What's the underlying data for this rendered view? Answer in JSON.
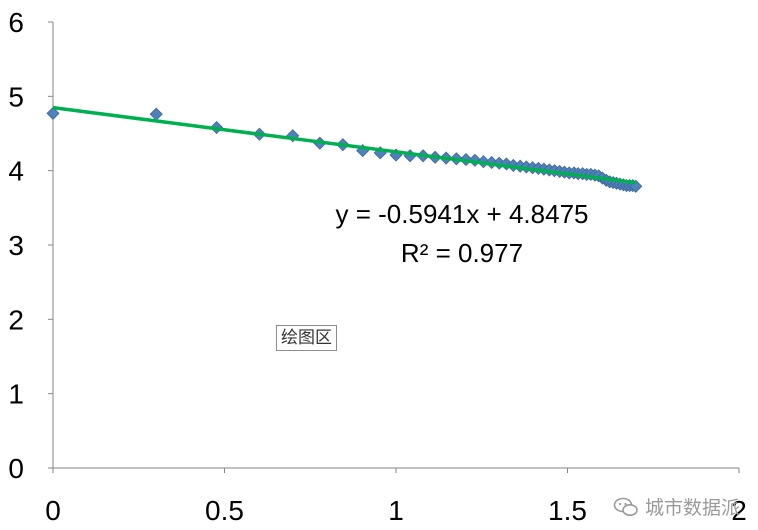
{
  "chart_data": {
    "type": "scatter",
    "xlim": [
      0,
      2
    ],
    "ylim": [
      0,
      6
    ],
    "x_ticks": [
      "0",
      "0.5",
      "1",
      "1.5",
      "2"
    ],
    "y_ticks": [
      "0",
      "1",
      "2",
      "3",
      "4",
      "5",
      "6"
    ],
    "grid": false,
    "marker_color": "#4f81bd",
    "trendline_color": "#00b050",
    "points": [
      [
        0.0,
        4.77
      ],
      [
        0.301,
        4.76
      ],
      [
        0.477,
        4.58
      ],
      [
        0.602,
        4.49
      ],
      [
        0.699,
        4.47
      ],
      [
        0.778,
        4.37
      ],
      [
        0.845,
        4.35
      ],
      [
        0.903,
        4.27
      ],
      [
        0.954,
        4.24
      ],
      [
        1.0,
        4.21
      ],
      [
        1.041,
        4.2
      ],
      [
        1.079,
        4.2
      ],
      [
        1.114,
        4.18
      ],
      [
        1.146,
        4.17
      ],
      [
        1.176,
        4.16
      ],
      [
        1.204,
        4.15
      ],
      [
        1.23,
        4.14
      ],
      [
        1.255,
        4.12
      ],
      [
        1.279,
        4.11
      ],
      [
        1.301,
        4.1
      ],
      [
        1.322,
        4.09
      ],
      [
        1.342,
        4.07
      ],
      [
        1.362,
        4.06
      ],
      [
        1.38,
        4.05
      ],
      [
        1.398,
        4.04
      ],
      [
        1.415,
        4.03
      ],
      [
        1.431,
        4.02
      ],
      [
        1.447,
        4.01
      ],
      [
        1.462,
        4.0
      ],
      [
        1.477,
        3.99
      ],
      [
        1.491,
        3.98
      ],
      [
        1.505,
        3.97
      ],
      [
        1.519,
        3.97
      ],
      [
        1.531,
        3.96
      ],
      [
        1.544,
        3.96
      ],
      [
        1.556,
        3.95
      ],
      [
        1.568,
        3.95
      ],
      [
        1.58,
        3.94
      ],
      [
        1.591,
        3.93
      ],
      [
        1.602,
        3.9
      ],
      [
        1.613,
        3.87
      ],
      [
        1.623,
        3.85
      ],
      [
        1.633,
        3.84
      ],
      [
        1.643,
        3.83
      ],
      [
        1.653,
        3.82
      ],
      [
        1.663,
        3.81
      ],
      [
        1.672,
        3.8
      ],
      [
        1.681,
        3.8
      ],
      [
        1.69,
        3.8
      ],
      [
        1.699,
        3.79
      ]
    ],
    "trendline": {
      "slope": -0.5941,
      "intercept": 4.8475,
      "x_range": [
        0,
        1.699
      ],
      "equation": "y = -0.5941x + 4.8475",
      "r_squared": "R² = 0.977"
    }
  },
  "plot_area_tag": "绘图区",
  "watermark": {
    "icon": "wechat-icon",
    "text": "城市数据派"
  }
}
